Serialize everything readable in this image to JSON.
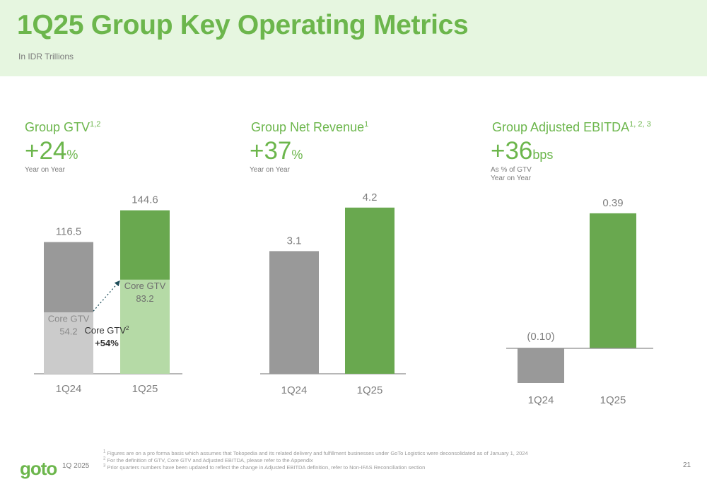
{
  "header": {
    "title": "1Q25 Group Key Operating Metrics",
    "subtitle": "In IDR Trillions"
  },
  "panels": [
    {
      "title": "Group GTV",
      "title_sup": "1,2",
      "growth": "+24",
      "growth_unit": "%",
      "notes": [
        "Year on Year"
      ]
    },
    {
      "title": "Group Net Revenue",
      "title_sup": "1",
      "growth": "+37",
      "growth_unit": "%",
      "notes": [
        "Year on Year"
      ]
    },
    {
      "title": "Group Adjusted EBITDA",
      "title_sup": "1, 2, 3",
      "growth": "+36",
      "growth_unit": "bps",
      "notes": [
        "As % of GTV",
        "Year on Year"
      ]
    }
  ],
  "chart_data": [
    {
      "type": "bar",
      "stacked": true,
      "categories": [
        "1Q24",
        "1Q25"
      ],
      "totals": [
        116.5,
        144.6
      ],
      "total_labels": [
        "116.5",
        "144.6"
      ],
      "series": [
        {
          "name": "Core GTV",
          "values": [
            54.2,
            83.2
          ],
          "labels": [
            "54.2",
            "83.2"
          ]
        },
        {
          "values": [
            62.3,
            61.4
          ]
        }
      ],
      "annotation": {
        "label": "Core GTV",
        "label_sup": "2",
        "value": "+54%"
      },
      "colors": {
        "core_1q24": "#cbcbcb",
        "other_1q24": "#999999",
        "core_1q25": "#b5daa6",
        "other_1q25": "#69a84f"
      }
    },
    {
      "type": "bar",
      "categories": [
        "1Q24",
        "1Q25"
      ],
      "values": [
        3.1,
        4.2
      ],
      "labels": [
        "3.1",
        "4.2"
      ],
      "colors": [
        "#999999",
        "#69a84f"
      ]
    },
    {
      "type": "bar",
      "categories": [
        "1Q24",
        "1Q25"
      ],
      "values": [
        -0.1,
        0.39
      ],
      "labels": [
        "(0.10)",
        "0.39"
      ],
      "colors": [
        "#999999",
        "#69a84f"
      ]
    }
  ],
  "footer": {
    "logo": "goto",
    "period": "1Q 2025",
    "page_number": "21",
    "footnotes": [
      {
        "num": "1",
        "text": "Figures are on a pro forma basis which assumes that Tokopedia and its related delivery and fulfillment businesses under GoTo Logistics were deconsolidated as of January 1, 2024"
      },
      {
        "num": "2",
        "text": "For the definition of GTV, Core GTV and Adjusted EBITDA, please refer to the Appendix"
      },
      {
        "num": "3",
        "text": "Prior quarters numbers have been updated to reflect the change in Adjusted EBITDA definition, refer to Non-IFAS Reconciliation section"
      }
    ]
  }
}
